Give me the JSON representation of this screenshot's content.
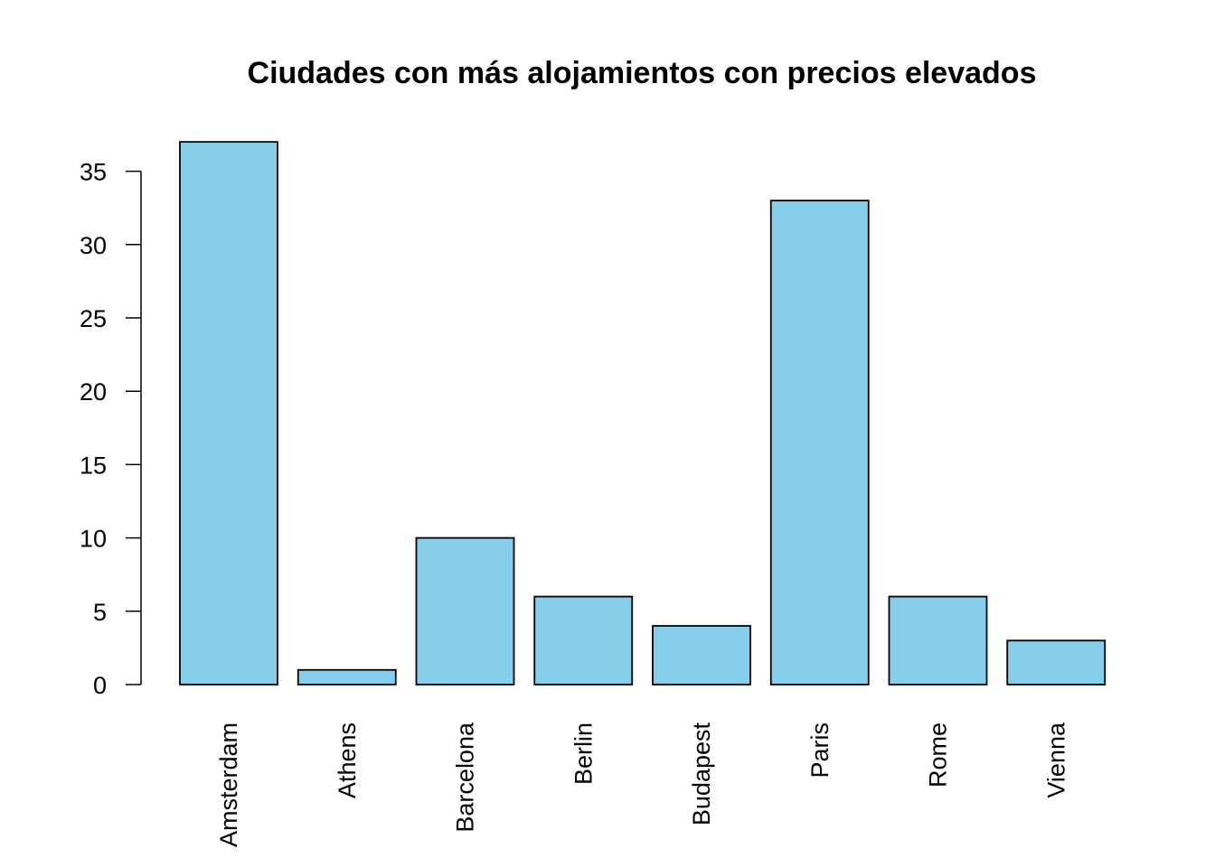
{
  "chart_data": {
    "type": "bar",
    "title": "Ciudades con más alojamientos con precios elevados",
    "xlabel": "",
    "ylabel": "",
    "categories": [
      "Amsterdam",
      "Athens",
      "Barcelona",
      "Berlin",
      "Budapest",
      "Paris",
      "Rome",
      "Vienna"
    ],
    "values": [
      37,
      1,
      10,
      6,
      4,
      33,
      6,
      3
    ],
    "ylim": [
      0,
      37
    ],
    "yticks": [
      0,
      5,
      10,
      15,
      20,
      25,
      30,
      35
    ],
    "xtick_orientation": "vertical",
    "bar_color": "#87CEEB",
    "bar_border_color": "#000000",
    "grid": false,
    "legend": "none"
  }
}
